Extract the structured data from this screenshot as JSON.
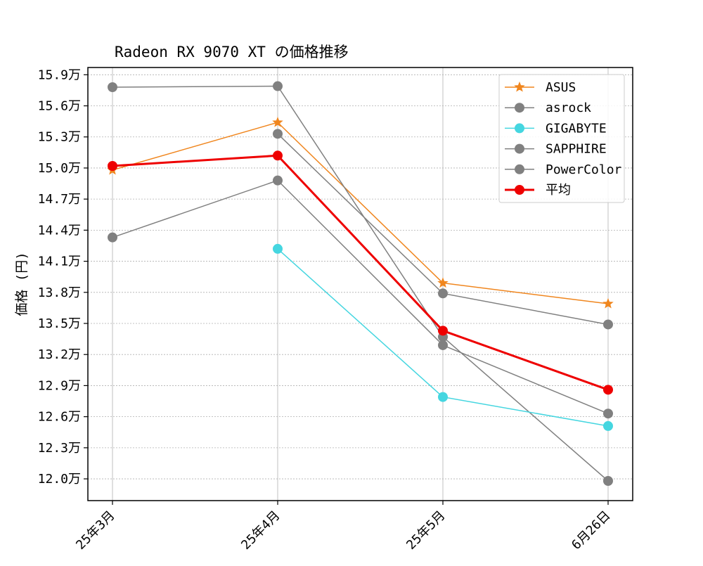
{
  "chart_data": {
    "type": "line",
    "title": "Radeon RX 9070 XT の価格推移",
    "xlabel": "",
    "ylabel": "価格 (円)",
    "categories": [
      "25年3月",
      "25年4月",
      "25年5月",
      "6月26日"
    ],
    "y_ticks": [
      {
        "value": 120000,
        "label": "12.0万"
      },
      {
        "value": 123000,
        "label": "12.3万"
      },
      {
        "value": 126000,
        "label": "12.6万"
      },
      {
        "value": 129000,
        "label": "12.9万"
      },
      {
        "value": 132000,
        "label": "13.2万"
      },
      {
        "value": 135000,
        "label": "13.5万"
      },
      {
        "value": 138000,
        "label": "13.8万"
      },
      {
        "value": 141000,
        "label": "14.1万"
      },
      {
        "value": 144000,
        "label": "14.4万"
      },
      {
        "value": 147000,
        "label": "14.7万"
      },
      {
        "value": 150000,
        "label": "15.0万"
      },
      {
        "value": 153000,
        "label": "15.3万"
      },
      {
        "value": 156000,
        "label": "15.6万"
      },
      {
        "value": 159000,
        "label": "15.9万"
      }
    ],
    "ylim": [
      117900,
      159700
    ],
    "grid": true,
    "legend_position": "top-right",
    "series": [
      {
        "name": "ASUS",
        "color": "#f0861e",
        "marker": "star",
        "width": 1.5,
        "values": [
          149800,
          154400,
          138900,
          136900
        ]
      },
      {
        "name": "asrock",
        "color": "#808080",
        "marker": "circle",
        "width": 1.5,
        "values": [
          157800,
          157900,
          133700,
          119800
        ]
      },
      {
        "name": "GIGABYTE",
        "color": "#45d6e0",
        "marker": "circle",
        "width": 1.5,
        "values": [
          null,
          142200,
          127900,
          125100
        ]
      },
      {
        "name": "SAPPHIRE",
        "color": "#808080",
        "marker": "circle",
        "width": 1.5,
        "values": [
          null,
          153300,
          137900,
          134900
        ]
      },
      {
        "name": "PowerColor",
        "color": "#808080",
        "marker": "circle",
        "width": 1.5,
        "values": [
          143300,
          148800,
          132900,
          126300
        ]
      },
      {
        "name": "平均",
        "color": "#ee0000",
        "marker": "circle",
        "width": 3,
        "values": [
          150200,
          151200,
          134300,
          128600
        ]
      }
    ]
  }
}
